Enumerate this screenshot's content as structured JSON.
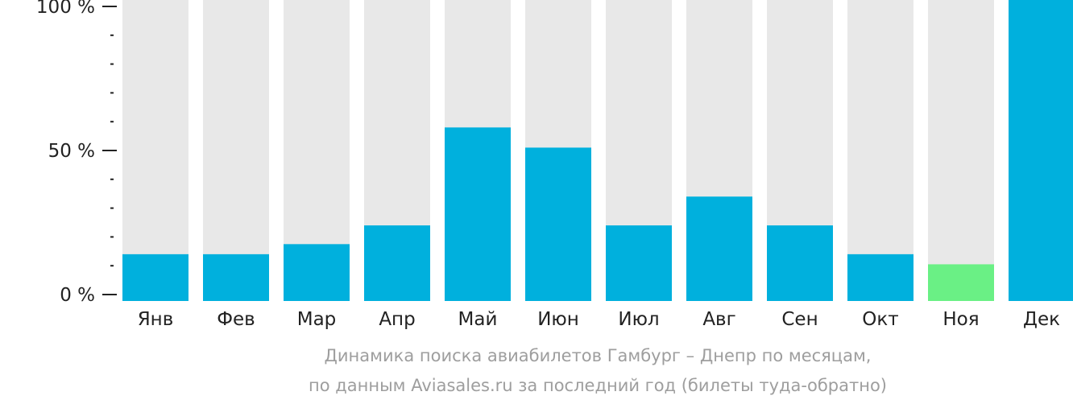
{
  "colors": {
    "track": "#e8e8e8",
    "bar": "#00b0dd",
    "bar_highlight": "#6af085",
    "axis": "#222222",
    "tick_label": "#222222",
    "caption": "#9e9e9e"
  },
  "caption": {
    "line1": "Динамика поиска авиабилетов Гамбург – Днепр по месяцам,",
    "line2": "по данным Aviasales.ru за последний год (билеты туда-обратно)"
  },
  "chart_data": {
    "type": "bar",
    "title": "",
    "xlabel": "",
    "ylabel": "",
    "ylim": [
      0,
      100
    ],
    "y_ticks": [
      0,
      50,
      100
    ],
    "y_tick_labels": [
      "0 %",
      "50 %",
      "100 %"
    ],
    "y_minor_step": 10,
    "grid": false,
    "categories": [
      "Янв",
      "Фев",
      "Мар",
      "Апр",
      "Май",
      "Июн",
      "Июл",
      "Авг",
      "Сен",
      "Окт",
      "Ноя",
      "Дек"
    ],
    "series": [
      {
        "values": [
          14,
          14,
          17.5,
          24,
          58,
          51,
          24,
          34,
          24,
          14,
          10.5,
          103
        ],
        "highlight_index": 10
      }
    ]
  }
}
